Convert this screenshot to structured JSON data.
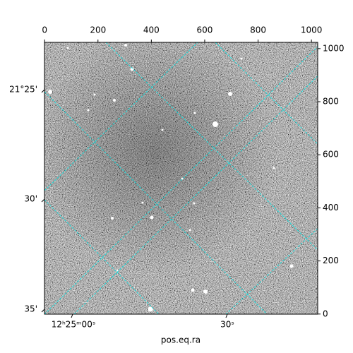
{
  "chart_data": {
    "type": "image",
    "xlabel": "pos.eq.ra",
    "xlim": [
      -0.5,
      1023.5
    ],
    "ylim": [
      -0.5,
      1023.5
    ],
    "xticks": [
      0,
      200,
      400,
      600,
      800,
      1000
    ],
    "yticks": [
      0,
      200,
      400,
      600,
      800,
      1000
    ],
    "ra_ticks": [
      "12ʰ25ᵐ00ˢ",
      "30ˢ"
    ],
    "dec_ticks": [
      "21°25'",
      "30'",
      "35'"
    ],
    "grid_color": "#00e5e5"
  }
}
